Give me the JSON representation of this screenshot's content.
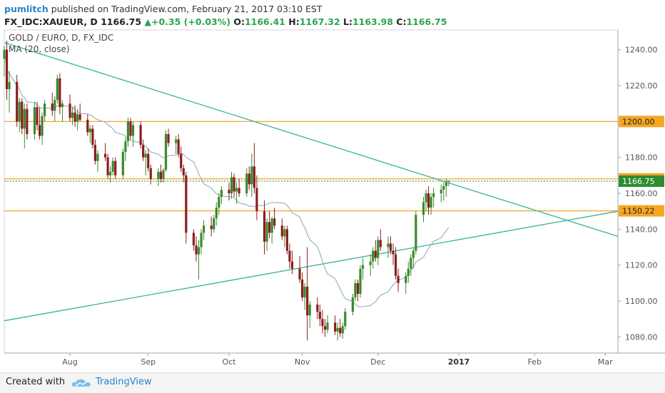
{
  "header": {
    "user": "pumlitch",
    "published": "published on TradingView.com, February 21, 2017 03:10 EST",
    "symbol": "FX_IDC:XAUEUR, D",
    "last": "1166.75",
    "change": "+0.35 (+0.03%)",
    "o_label": "O:",
    "o": "1166.41",
    "h_label": "H:",
    "h": "1167.32",
    "l_label": "L:",
    "l": "1163.98",
    "c_label": "C:",
    "c": "1166.75"
  },
  "footer": {
    "created": "Created with",
    "brand": "TradingView"
  },
  "colors": {
    "up": "#3a8a2e",
    "down": "#8b1e1e",
    "hline": "#f5a623",
    "trend": "#3ab394",
    "ma": "#9bb5c4",
    "last_bg": "#2e8b2e"
  },
  "chart_data": {
    "type": "candlestick",
    "legend": [
      "GOLD / EURO, D, FX_IDC",
      "MA (20, close)"
    ],
    "y_ticks": [
      1080,
      1100,
      1120,
      1140,
      1160,
      1180,
      1200,
      1220,
      1240
    ],
    "y_tick_labels": [
      "1080.00",
      "1100.00",
      "1120.00",
      "1140.00",
      "1160.00",
      "1180.00",
      "1200.00",
      "1220.00",
      "1240.00"
    ],
    "ylim": [
      1071,
      1251
    ],
    "x_ticks": [
      {
        "label": "Aug",
        "date": "2016-08-01",
        "bold": false
      },
      {
        "label": "Sep",
        "date": "2016-09-01",
        "bold": false
      },
      {
        "label": "Oct",
        "date": "2016-10-03",
        "bold": false
      },
      {
        "label": "Nov",
        "date": "2016-11-01",
        "bold": false
      },
      {
        "label": "Dec",
        "date": "2016-12-01",
        "bold": false
      },
      {
        "label": "2017",
        "date": "2017-01-02",
        "bold": true
      },
      {
        "label": "Feb",
        "date": "2017-02-01",
        "bold": false
      },
      {
        "label": "Mar",
        "date": "2017-03-01",
        "bold": false
      }
    ],
    "xlim": [
      "2016-07-06",
      "2017-03-06"
    ],
    "horizontal_levels": [
      {
        "value": 1200.0,
        "label": "1200.00"
      },
      {
        "value": 1168.05,
        "label": "1168.05"
      },
      {
        "value": 1150.22,
        "label": "1150.22"
      }
    ],
    "last_price": {
      "value": 1166.75,
      "label": "1166.75"
    },
    "trendlines": [
      {
        "name": "descending",
        "points": [
          [
            "2016-07-06",
            1244
          ],
          [
            "2017-03-06",
            1136
          ]
        ]
      },
      {
        "name": "ascending",
        "points": [
          [
            "2016-07-06",
            1089
          ],
          [
            "2017-03-06",
            1150
          ]
        ]
      }
    ],
    "ohlc_start": "2016-07-06",
    "ohlc": [
      [
        1235,
        1242,
        1225,
        1240
      ],
      [
        1240,
        1245,
        1212,
        1218
      ],
      [
        1218,
        1228,
        1205,
        1222
      ],
      [
        1222,
        1226,
        1197,
        1200
      ],
      [
        1200,
        1213,
        1194,
        1211
      ],
      [
        1211,
        1213,
        1193,
        1196
      ],
      [
        1196,
        1210,
        1185,
        1207
      ],
      [
        1207,
        1210,
        1190,
        1193
      ],
      [
        1193,
        1211,
        1190,
        1208
      ],
      [
        1208,
        1211,
        1195,
        1198
      ],
      [
        1198,
        1208,
        1190,
        1192
      ],
      [
        1192,
        1205,
        1187,
        1203
      ],
      [
        1203,
        1212,
        1200,
        1210
      ],
      [
        1210,
        1216,
        1203,
        1206
      ],
      [
        1206,
        1214,
        1200,
        1212
      ],
      [
        1212,
        1226,
        1210,
        1224
      ],
      [
        1224,
        1227,
        1204,
        1208
      ],
      [
        1208,
        1212,
        1200,
        1210
      ],
      [
        1210,
        1215,
        1200,
        1202
      ],
      [
        1202,
        1208,
        1198,
        1205
      ],
      [
        1205,
        1209,
        1197,
        1200
      ],
      [
        1200,
        1207,
        1195,
        1204
      ],
      [
        1204,
        1210,
        1200,
        1201
      ],
      [
        1201,
        1204,
        1192,
        1194
      ],
      [
        1194,
        1198,
        1188,
        1196
      ],
      [
        1196,
        1198,
        1185,
        1187
      ],
      [
        1187,
        1190,
        1176,
        1178
      ],
      [
        1178,
        1184,
        1172,
        1182
      ],
      [
        1182,
        1188,
        1178,
        1180
      ],
      [
        1180,
        1182,
        1168,
        1170
      ],
      [
        1170,
        1175,
        1166,
        1172
      ],
      [
        1172,
        1180,
        1170,
        1178
      ],
      [
        1178,
        1180,
        1168,
        1170
      ],
      [
        1170,
        1185,
        1168,
        1183
      ],
      [
        1183,
        1191,
        1178,
        1189
      ],
      [
        1189,
        1202,
        1186,
        1200
      ],
      [
        1200,
        1202,
        1190,
        1192
      ],
      [
        1192,
        1200,
        1186,
        1198
      ],
      [
        1198,
        1200,
        1185,
        1187
      ],
      [
        1187,
        1190,
        1178,
        1180
      ],
      [
        1180,
        1184,
        1170,
        1182
      ],
      [
        1182,
        1185,
        1172,
        1174
      ],
      [
        1174,
        1176,
        1165,
        1168
      ],
      [
        1168,
        1174,
        1164,
        1172
      ],
      [
        1172,
        1176,
        1166,
        1168
      ],
      [
        1168,
        1174,
        1166,
        1173
      ],
      [
        1173,
        1195,
        1172,
        1193
      ],
      [
        1193,
        1196,
        1186,
        1188
      ],
      [
        1188,
        1192,
        1182,
        1190
      ],
      [
        1190,
        1193,
        1180,
        1182
      ],
      [
        1182,
        1186,
        1172,
        1174
      ],
      [
        1174,
        1176,
        1166,
        1170
      ],
      [
        1170,
        1172,
        1132,
        1138
      ],
      [
        1138,
        1140,
        1128,
        1131
      ],
      [
        1131,
        1136,
        1122,
        1126
      ],
      [
        1126,
        1134,
        1112,
        1130
      ],
      [
        1130,
        1140,
        1126,
        1138
      ],
      [
        1138,
        1145,
        1134,
        1142
      ],
      [
        1142,
        1147,
        1136,
        1140
      ],
      [
        1140,
        1148,
        1138,
        1146
      ],
      [
        1146,
        1155,
        1142,
        1152
      ],
      [
        1152,
        1160,
        1148,
        1158
      ],
      [
        1158,
        1164,
        1154,
        1162
      ],
      [
        1162,
        1166,
        1156,
        1160
      ],
      [
        1160,
        1172,
        1157,
        1169
      ],
      [
        1169,
        1171,
        1158,
        1161
      ],
      [
        1161,
        1166,
        1154,
        1163
      ],
      [
        1163,
        1168,
        1158,
        1160
      ],
      [
        1160,
        1174,
        1158,
        1171
      ],
      [
        1171,
        1175,
        1162,
        1165
      ],
      [
        1165,
        1182,
        1158,
        1175
      ],
      [
        1175,
        1188,
        1160,
        1163
      ],
      [
        1163,
        1170,
        1145,
        1150
      ],
      [
        1150,
        1156,
        1126,
        1133
      ],
      [
        1133,
        1146,
        1128,
        1144
      ],
      [
        1144,
        1150,
        1135,
        1138
      ],
      [
        1138,
        1147,
        1132,
        1146
      ],
      [
        1146,
        1152,
        1140,
        1142
      ],
      [
        1142,
        1146,
        1134,
        1136
      ],
      [
        1136,
        1142,
        1130,
        1140
      ],
      [
        1140,
        1142,
        1126,
        1128
      ],
      [
        1128,
        1132,
        1118,
        1122
      ],
      [
        1122,
        1128,
        1115,
        1118
      ],
      [
        1118,
        1125,
        1110,
        1112
      ],
      [
        1112,
        1116,
        1100,
        1102
      ],
      [
        1102,
        1110,
        1095,
        1108
      ],
      [
        1108,
        1130,
        1078,
        1092
      ],
      [
        1092,
        1100,
        1085,
        1098
      ],
      [
        1098,
        1102,
        1090,
        1094
      ],
      [
        1094,
        1098,
        1086,
        1090
      ],
      [
        1090,
        1095,
        1082,
        1086
      ],
      [
        1086,
        1090,
        1080,
        1084
      ],
      [
        1084,
        1092,
        1082,
        1088
      ],
      [
        1088,
        1092,
        1081,
        1083
      ],
      [
        1083,
        1088,
        1078,
        1085
      ],
      [
        1085,
        1090,
        1080,
        1082
      ],
      [
        1082,
        1088,
        1079,
        1086
      ],
      [
        1086,
        1096,
        1084,
        1094
      ],
      [
        1094,
        1104,
        1092,
        1102
      ],
      [
        1102,
        1112,
        1100,
        1110
      ],
      [
        1110,
        1112,
        1100,
        1104
      ],
      [
        1104,
        1120,
        1102,
        1118
      ],
      [
        1118,
        1124,
        1112,
        1120
      ],
      [
        1120,
        1126,
        1114,
        1122
      ],
      [
        1122,
        1130,
        1118,
        1128
      ],
      [
        1128,
        1134,
        1122,
        1124
      ],
      [
        1124,
        1136,
        1120,
        1134
      ],
      [
        1134,
        1140,
        1128,
        1130
      ],
      [
        1130,
        1136,
        1124,
        1132
      ],
      [
        1132,
        1136,
        1126,
        1128
      ],
      [
        1128,
        1132,
        1120,
        1126
      ],
      [
        1126,
        1130,
        1112,
        1114
      ],
      [
        1114,
        1118,
        1105,
        1110
      ],
      [
        1110,
        1116,
        1104,
        1114
      ],
      [
        1114,
        1122,
        1110,
        1118
      ],
      [
        1118,
        1126,
        1114,
        1124
      ],
      [
        1124,
        1130,
        1118,
        1128
      ],
      [
        1128,
        1150,
        1126,
        1148
      ],
      [
        1148,
        1158,
        1144,
        1155
      ],
      [
        1155,
        1162,
        1150,
        1160
      ],
      [
        1160,
        1164,
        1148,
        1152
      ],
      [
        1152,
        1160,
        1148,
        1158
      ],
      [
        1158,
        1163,
        1152,
        1160
      ],
      [
        1160,
        1165,
        1155,
        1162
      ],
      [
        1162,
        1166,
        1156,
        1164
      ],
      [
        1164,
        1168,
        1158,
        1166
      ],
      [
        1166.41,
        1167.32,
        1163.98,
        1166.75
      ]
    ],
    "ma_period": 20
  }
}
